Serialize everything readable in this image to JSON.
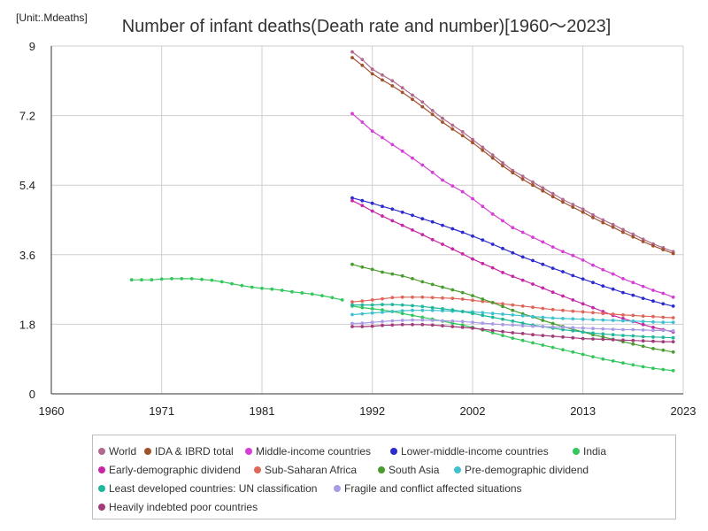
{
  "chart_data": {
    "type": "line",
    "title": "Number of infant deaths(Death rate and number)[1960～2023]",
    "unit_label": "[Unit:.Mdeaths]",
    "xlabel": "",
    "ylabel": "",
    "xlim": [
      1960,
      2023
    ],
    "ylim": [
      0,
      9
    ],
    "x_ticks": [
      1960,
      1971,
      1981,
      1992,
      2002,
      2013,
      2023
    ],
    "y_ticks": [
      0,
      1.8,
      3.6,
      5.4,
      7.2,
      9
    ],
    "y_tick_labels": [
      "0",
      "1.8",
      "3.6",
      "5.4",
      "7.2",
      "9"
    ],
    "grid": true,
    "legend_position": "bottom",
    "series": [
      {
        "name": "World",
        "color": "#b06a8e",
        "x": [
          1990,
          1991,
          1992,
          1993,
          1994,
          1995,
          1996,
          1997,
          1998,
          1999,
          2000,
          2001,
          2002,
          2003,
          2004,
          2005,
          2006,
          2007,
          2008,
          2009,
          2010,
          2011,
          2012,
          2013,
          2014,
          2015,
          2016,
          2017,
          2018,
          2019,
          2020,
          2021,
          2022
        ],
        "values": [
          8.85,
          8.65,
          8.4,
          8.25,
          8.1,
          7.92,
          7.73,
          7.55,
          7.33,
          7.13,
          6.95,
          6.78,
          6.58,
          6.38,
          6.18,
          5.98,
          5.78,
          5.63,
          5.48,
          5.33,
          5.18,
          5.03,
          4.9,
          4.78,
          4.63,
          4.5,
          4.38,
          4.25,
          4.13,
          4.0,
          3.88,
          3.78,
          3.68
        ]
      },
      {
        "name": "IDA & IBRD total",
        "color": "#a0522d",
        "x": [
          1990,
          1991,
          1992,
          1993,
          1994,
          1995,
          1996,
          1997,
          1998,
          1999,
          2000,
          2001,
          2002,
          2003,
          2004,
          2005,
          2006,
          2007,
          2008,
          2009,
          2010,
          2011,
          2012,
          2013,
          2014,
          2015,
          2016,
          2017,
          2018,
          2019,
          2020,
          2021,
          2022
        ],
        "values": [
          8.7,
          8.5,
          8.28,
          8.12,
          7.97,
          7.8,
          7.62,
          7.43,
          7.23,
          7.03,
          6.85,
          6.68,
          6.5,
          6.3,
          6.1,
          5.9,
          5.72,
          5.55,
          5.4,
          5.25,
          5.1,
          4.96,
          4.83,
          4.7,
          4.56,
          4.43,
          4.31,
          4.18,
          4.06,
          3.94,
          3.83,
          3.73,
          3.63
        ]
      },
      {
        "name": "Middle-income countries",
        "color": "#d63fd6",
        "x": [
          1990,
          1991,
          1992,
          1993,
          1994,
          1995,
          1996,
          1997,
          1998,
          1999,
          2000,
          2001,
          2002,
          2003,
          2004,
          2005,
          2006,
          2007,
          2008,
          2009,
          2010,
          2011,
          2012,
          2013,
          2014,
          2015,
          2016,
          2017,
          2018,
          2019,
          2020,
          2021,
          2022
        ],
        "values": [
          7.25,
          7.03,
          6.8,
          6.63,
          6.45,
          6.28,
          6.1,
          5.92,
          5.73,
          5.53,
          5.38,
          5.23,
          5.05,
          4.85,
          4.65,
          4.48,
          4.3,
          4.18,
          4.05,
          3.93,
          3.8,
          3.68,
          3.58,
          3.46,
          3.33,
          3.21,
          3.1,
          2.98,
          2.88,
          2.78,
          2.68,
          2.6,
          2.5
        ]
      },
      {
        "name": "Lower-middle-income countries",
        "color": "#2b2bcf",
        "x": [
          1990,
          1991,
          1992,
          1993,
          1994,
          1995,
          1996,
          1997,
          1998,
          1999,
          2000,
          2001,
          2002,
          2003,
          2004,
          2005,
          2006,
          2007,
          2008,
          2009,
          2010,
          2011,
          2012,
          2013,
          2014,
          2015,
          2016,
          2017,
          2018,
          2019,
          2020,
          2021,
          2022
        ],
        "values": [
          5.07,
          5.0,
          4.93,
          4.85,
          4.78,
          4.7,
          4.62,
          4.53,
          4.45,
          4.36,
          4.27,
          4.18,
          4.08,
          3.98,
          3.87,
          3.76,
          3.65,
          3.54,
          3.45,
          3.35,
          3.25,
          3.16,
          3.06,
          2.97,
          2.88,
          2.79,
          2.71,
          2.62,
          2.55,
          2.47,
          2.4,
          2.33,
          2.27
        ]
      },
      {
        "name": "India",
        "color": "#33c75c",
        "x": [
          1990,
          1991,
          1992,
          1993,
          1994,
          1995,
          1996,
          1997,
          1998,
          1999,
          2000,
          2001,
          2002,
          2003,
          2004,
          2005,
          2006,
          2007,
          2008,
          2009,
          2010,
          2011,
          2012,
          2013,
          2014,
          2015,
          2016,
          2017,
          2018,
          2019,
          2020,
          2021,
          2022
        ],
        "values": [
          2.27,
          2.23,
          2.2,
          2.17,
          2.13,
          2.08,
          2.03,
          1.98,
          1.93,
          1.88,
          1.83,
          1.78,
          1.72,
          1.65,
          1.58,
          1.51,
          1.44,
          1.38,
          1.32,
          1.26,
          1.2,
          1.14,
          1.08,
          1.02,
          0.96,
          0.9,
          0.85,
          0.8,
          0.75,
          0.7,
          0.66,
          0.63,
          0.6
        ]
      },
      {
        "name": "Early-demographic dividend",
        "color": "#c726a5",
        "x": [
          1990,
          1991,
          1992,
          1993,
          1994,
          1995,
          1996,
          1997,
          1998,
          1999,
          2000,
          2001,
          2002,
          2003,
          2004,
          2005,
          2006,
          2007,
          2008,
          2009,
          2010,
          2011,
          2012,
          2013,
          2014,
          2015,
          2016,
          2017,
          2018,
          2019,
          2020,
          2021,
          2022
        ],
        "values": [
          5.0,
          4.87,
          4.73,
          4.6,
          4.48,
          4.36,
          4.24,
          4.12,
          3.99,
          3.87,
          3.75,
          3.62,
          3.49,
          3.37,
          3.26,
          3.14,
          3.04,
          2.94,
          2.84,
          2.74,
          2.63,
          2.53,
          2.43,
          2.33,
          2.23,
          2.13,
          2.03,
          1.95,
          1.87,
          1.79,
          1.72,
          1.66,
          1.6
        ]
      },
      {
        "name": "Sub-Saharan Africa",
        "color": "#e0665a",
        "x": [
          1990,
          1991,
          1992,
          1993,
          1994,
          1995,
          1996,
          1997,
          1998,
          1999,
          2000,
          2001,
          2002,
          2003,
          2004,
          2005,
          2006,
          2007,
          2008,
          2009,
          2010,
          2011,
          2012,
          2013,
          2014,
          2015,
          2016,
          2017,
          2018,
          2019,
          2020,
          2021,
          2022
        ],
        "values": [
          2.38,
          2.4,
          2.43,
          2.46,
          2.49,
          2.5,
          2.5,
          2.5,
          2.49,
          2.48,
          2.47,
          2.45,
          2.42,
          2.39,
          2.36,
          2.33,
          2.3,
          2.27,
          2.24,
          2.21,
          2.18,
          2.16,
          2.14,
          2.12,
          2.1,
          2.08,
          2.06,
          2.04,
          2.03,
          2.01,
          2.0,
          1.98,
          1.97
        ]
      },
      {
        "name": "South Asia",
        "color": "#4a9c2f",
        "x": [
          1990,
          1991,
          1992,
          1993,
          1994,
          1995,
          1996,
          1997,
          1998,
          1999,
          2000,
          2001,
          2002,
          2003,
          2004,
          2005,
          2006,
          2007,
          2008,
          2009,
          2010,
          2011,
          2012,
          2013,
          2014,
          2015,
          2016,
          2017,
          2018,
          2019,
          2020,
          2021,
          2022
        ],
        "values": [
          3.35,
          3.28,
          3.22,
          3.15,
          3.1,
          3.05,
          2.98,
          2.9,
          2.83,
          2.76,
          2.69,
          2.62,
          2.54,
          2.45,
          2.36,
          2.26,
          2.16,
          2.07,
          1.99,
          1.9,
          1.82,
          1.74,
          1.67,
          1.6,
          1.53,
          1.47,
          1.41,
          1.35,
          1.29,
          1.23,
          1.17,
          1.13,
          1.08
        ]
      },
      {
        "name": "Pre-demographic dividend",
        "color": "#3fc1d0",
        "x": [
          1990,
          1991,
          1992,
          1993,
          1994,
          1995,
          1996,
          1997,
          1998,
          1999,
          2000,
          2001,
          2002,
          2003,
          2004,
          2005,
          2006,
          2007,
          2008,
          2009,
          2010,
          2011,
          2012,
          2013,
          2014,
          2015,
          2016,
          2017,
          2018,
          2019,
          2020,
          2021,
          2022
        ],
        "values": [
          2.05,
          2.07,
          2.09,
          2.11,
          2.13,
          2.15,
          2.16,
          2.16,
          2.16,
          2.15,
          2.14,
          2.13,
          2.12,
          2.1,
          2.08,
          2.06,
          2.04,
          2.02,
          2.0,
          1.98,
          1.96,
          1.95,
          1.94,
          1.93,
          1.92,
          1.91,
          1.9,
          1.89,
          1.88,
          1.87,
          1.86,
          1.85,
          1.85
        ]
      },
      {
        "name": "Least developed countries: UN classification",
        "color": "#1fb89a",
        "x": [
          1990,
          1991,
          1992,
          1993,
          1994,
          1995,
          1996,
          1997,
          1998,
          1999,
          2000,
          2001,
          2002,
          2003,
          2004,
          2005,
          2006,
          2007,
          2008,
          2009,
          2010,
          2011,
          2012,
          2013,
          2014,
          2015,
          2016,
          2017,
          2018,
          2019,
          2020,
          2021,
          2022
        ],
        "values": [
          2.3,
          2.3,
          2.3,
          2.31,
          2.31,
          2.3,
          2.28,
          2.26,
          2.23,
          2.2,
          2.17,
          2.13,
          2.08,
          2.03,
          1.98,
          1.93,
          1.88,
          1.83,
          1.78,
          1.74,
          1.7,
          1.66,
          1.63,
          1.6,
          1.57,
          1.55,
          1.53,
          1.51,
          1.5,
          1.48,
          1.47,
          1.46,
          1.45
        ]
      },
      {
        "name": "Fragile and conflict affected situations",
        "color": "#a99be6",
        "x": [
          1990,
          1991,
          1992,
          1993,
          1994,
          1995,
          1996,
          1997,
          1998,
          1999,
          2000,
          2001,
          2002,
          2003,
          2004,
          2005,
          2006,
          2007,
          2008,
          2009,
          2010,
          2011,
          2012,
          2013,
          2014,
          2015,
          2016,
          2017,
          2018,
          2019,
          2020,
          2021,
          2022
        ],
        "values": [
          1.82,
          1.83,
          1.85,
          1.87,
          1.89,
          1.9,
          1.91,
          1.91,
          1.9,
          1.89,
          1.88,
          1.87,
          1.85,
          1.83,
          1.81,
          1.79,
          1.78,
          1.76,
          1.75,
          1.74,
          1.73,
          1.72,
          1.71,
          1.7,
          1.69,
          1.68,
          1.67,
          1.66,
          1.66,
          1.65,
          1.64,
          1.64,
          1.63
        ]
      },
      {
        "name": "Heavily indebted poor countries",
        "color": "#a33a7a",
        "x": [
          1990,
          1991,
          1992,
          1993,
          1994,
          1995,
          1996,
          1997,
          1998,
          1999,
          2000,
          2001,
          2002,
          2003,
          2004,
          2005,
          2006,
          2007,
          2008,
          2009,
          2010,
          2011,
          2012,
          2013,
          2014,
          2015,
          2016,
          2017,
          2018,
          2019,
          2020,
          2021,
          2022
        ],
        "values": [
          1.74,
          1.74,
          1.75,
          1.77,
          1.78,
          1.79,
          1.79,
          1.79,
          1.78,
          1.76,
          1.74,
          1.72,
          1.7,
          1.67,
          1.64,
          1.61,
          1.58,
          1.56,
          1.53,
          1.51,
          1.49,
          1.47,
          1.45,
          1.43,
          1.42,
          1.41,
          1.4,
          1.39,
          1.38,
          1.37,
          1.36,
          1.35,
          1.35
        ]
      },
      {
        "name": "India (long series)",
        "color": "#33c75c",
        "legend": false,
        "x": [
          1968,
          1969,
          1970,
          1971,
          1972,
          1973,
          1974,
          1975,
          1976,
          1977,
          1978,
          1979,
          1980,
          1981,
          1982,
          1983,
          1984,
          1985,
          1986,
          1987,
          1988,
          1989
        ],
        "values": [
          2.95,
          2.95,
          2.95,
          2.97,
          2.98,
          2.98,
          2.98,
          2.96,
          2.94,
          2.9,
          2.85,
          2.8,
          2.76,
          2.73,
          2.71,
          2.68,
          2.64,
          2.61,
          2.58,
          2.54,
          2.49,
          2.43
        ]
      }
    ]
  }
}
